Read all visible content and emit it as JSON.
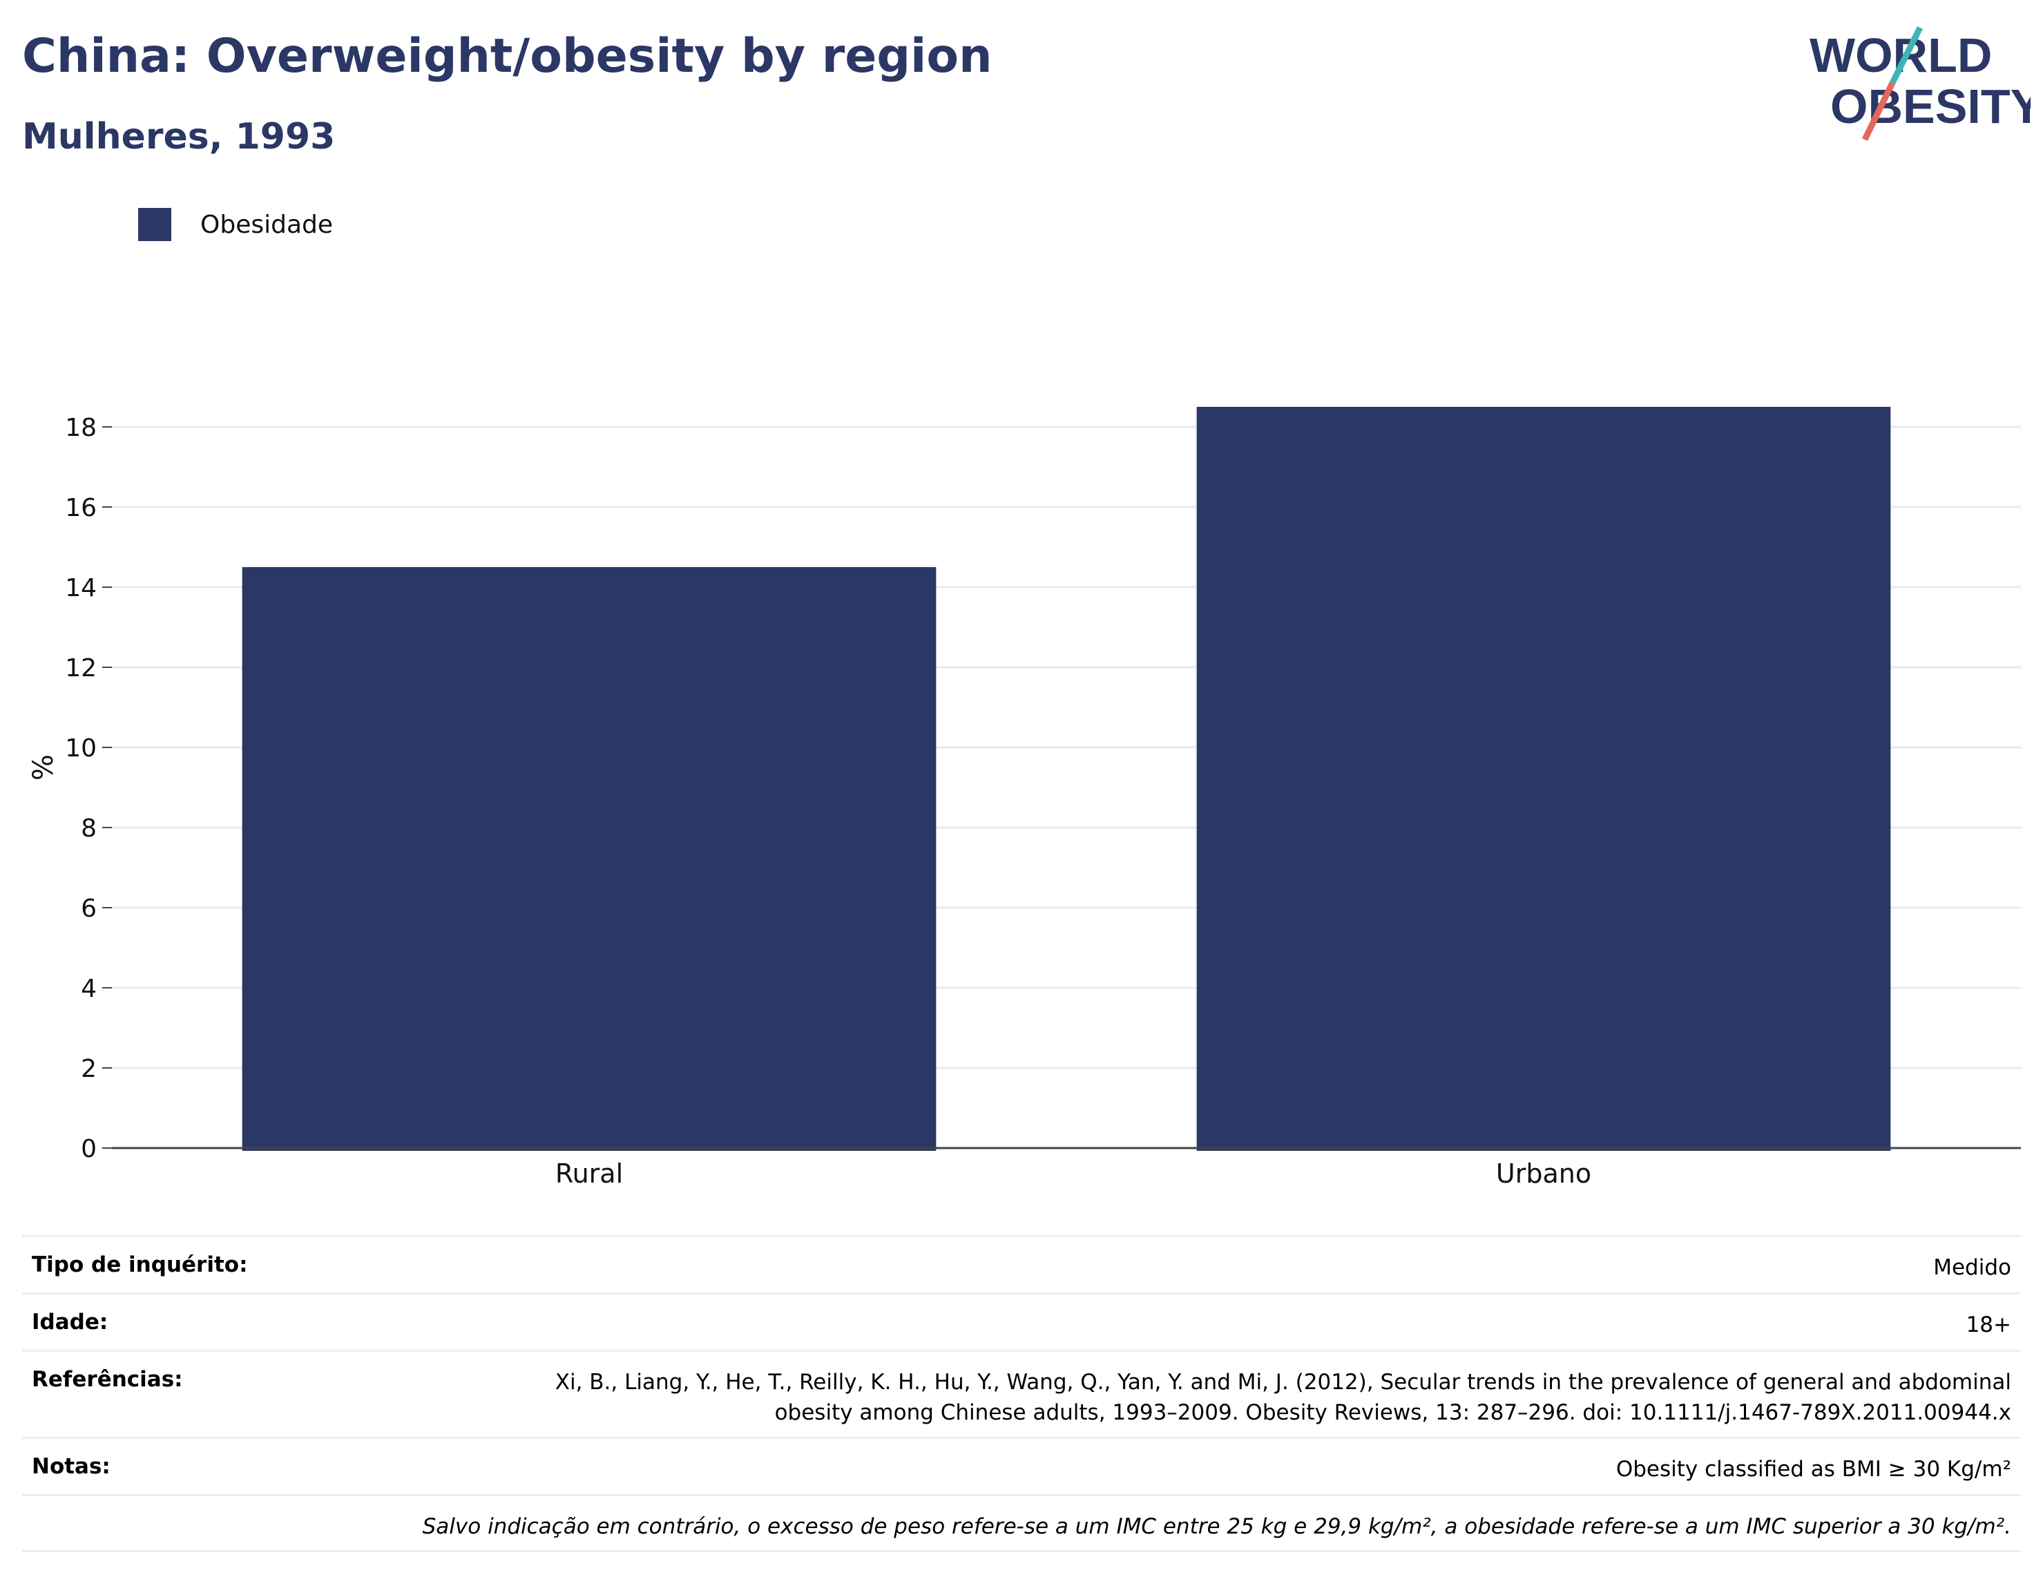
{
  "header": {
    "title": "China: Overweight/obesity by region",
    "subtitle": "Mulheres, 1993"
  },
  "logo": {
    "line1": "WORLD",
    "line2": "OBESITY",
    "colors": {
      "text": "#2b3765",
      "slash_teal": "#3db5b5",
      "slash_coral": "#e2695b"
    }
  },
  "chart_data": {
    "type": "bar",
    "categories": [
      "Rural",
      "Urbano"
    ],
    "series": [
      {
        "name": "Obesidade",
        "values": [
          14.5,
          18.5
        ],
        "color": "#2b3765"
      }
    ],
    "xlabel": "",
    "ylabel": "%",
    "ylim": [
      0,
      19
    ],
    "yticks": [
      0,
      2,
      4,
      6,
      8,
      10,
      12,
      14,
      16,
      18
    ],
    "grid": true,
    "legend_position": "top-left"
  },
  "info": {
    "survey_label": "Tipo de inquérito:",
    "survey_value": "Medido",
    "age_label": "Idade:",
    "age_value": "18+",
    "ref_label": "Referências:",
    "ref_value_line1": "Xi, B., Liang, Y., He, T., Reilly, K. H., Hu, Y., Wang, Q., Yan, Y. and Mi, J. (2012), Secular trends in the prevalence of general and abdominal",
    "ref_value_line2": "obesity among Chinese adults, 1993–2009. Obesity Reviews, 13: 287–296. doi: 10.1111/j.1467-789X.2011.00944.x",
    "notes_label": "Notas:",
    "notes_value": "Obesity classified as BMI ≥ 30 Kg/m²",
    "footnote": "Salvo indicação em contrário, o excesso de peso refere-se a um IMC entre 25 kg e 29,9 kg/m², a obesidade refere-se a um IMC superior a 30 kg/m²."
  }
}
